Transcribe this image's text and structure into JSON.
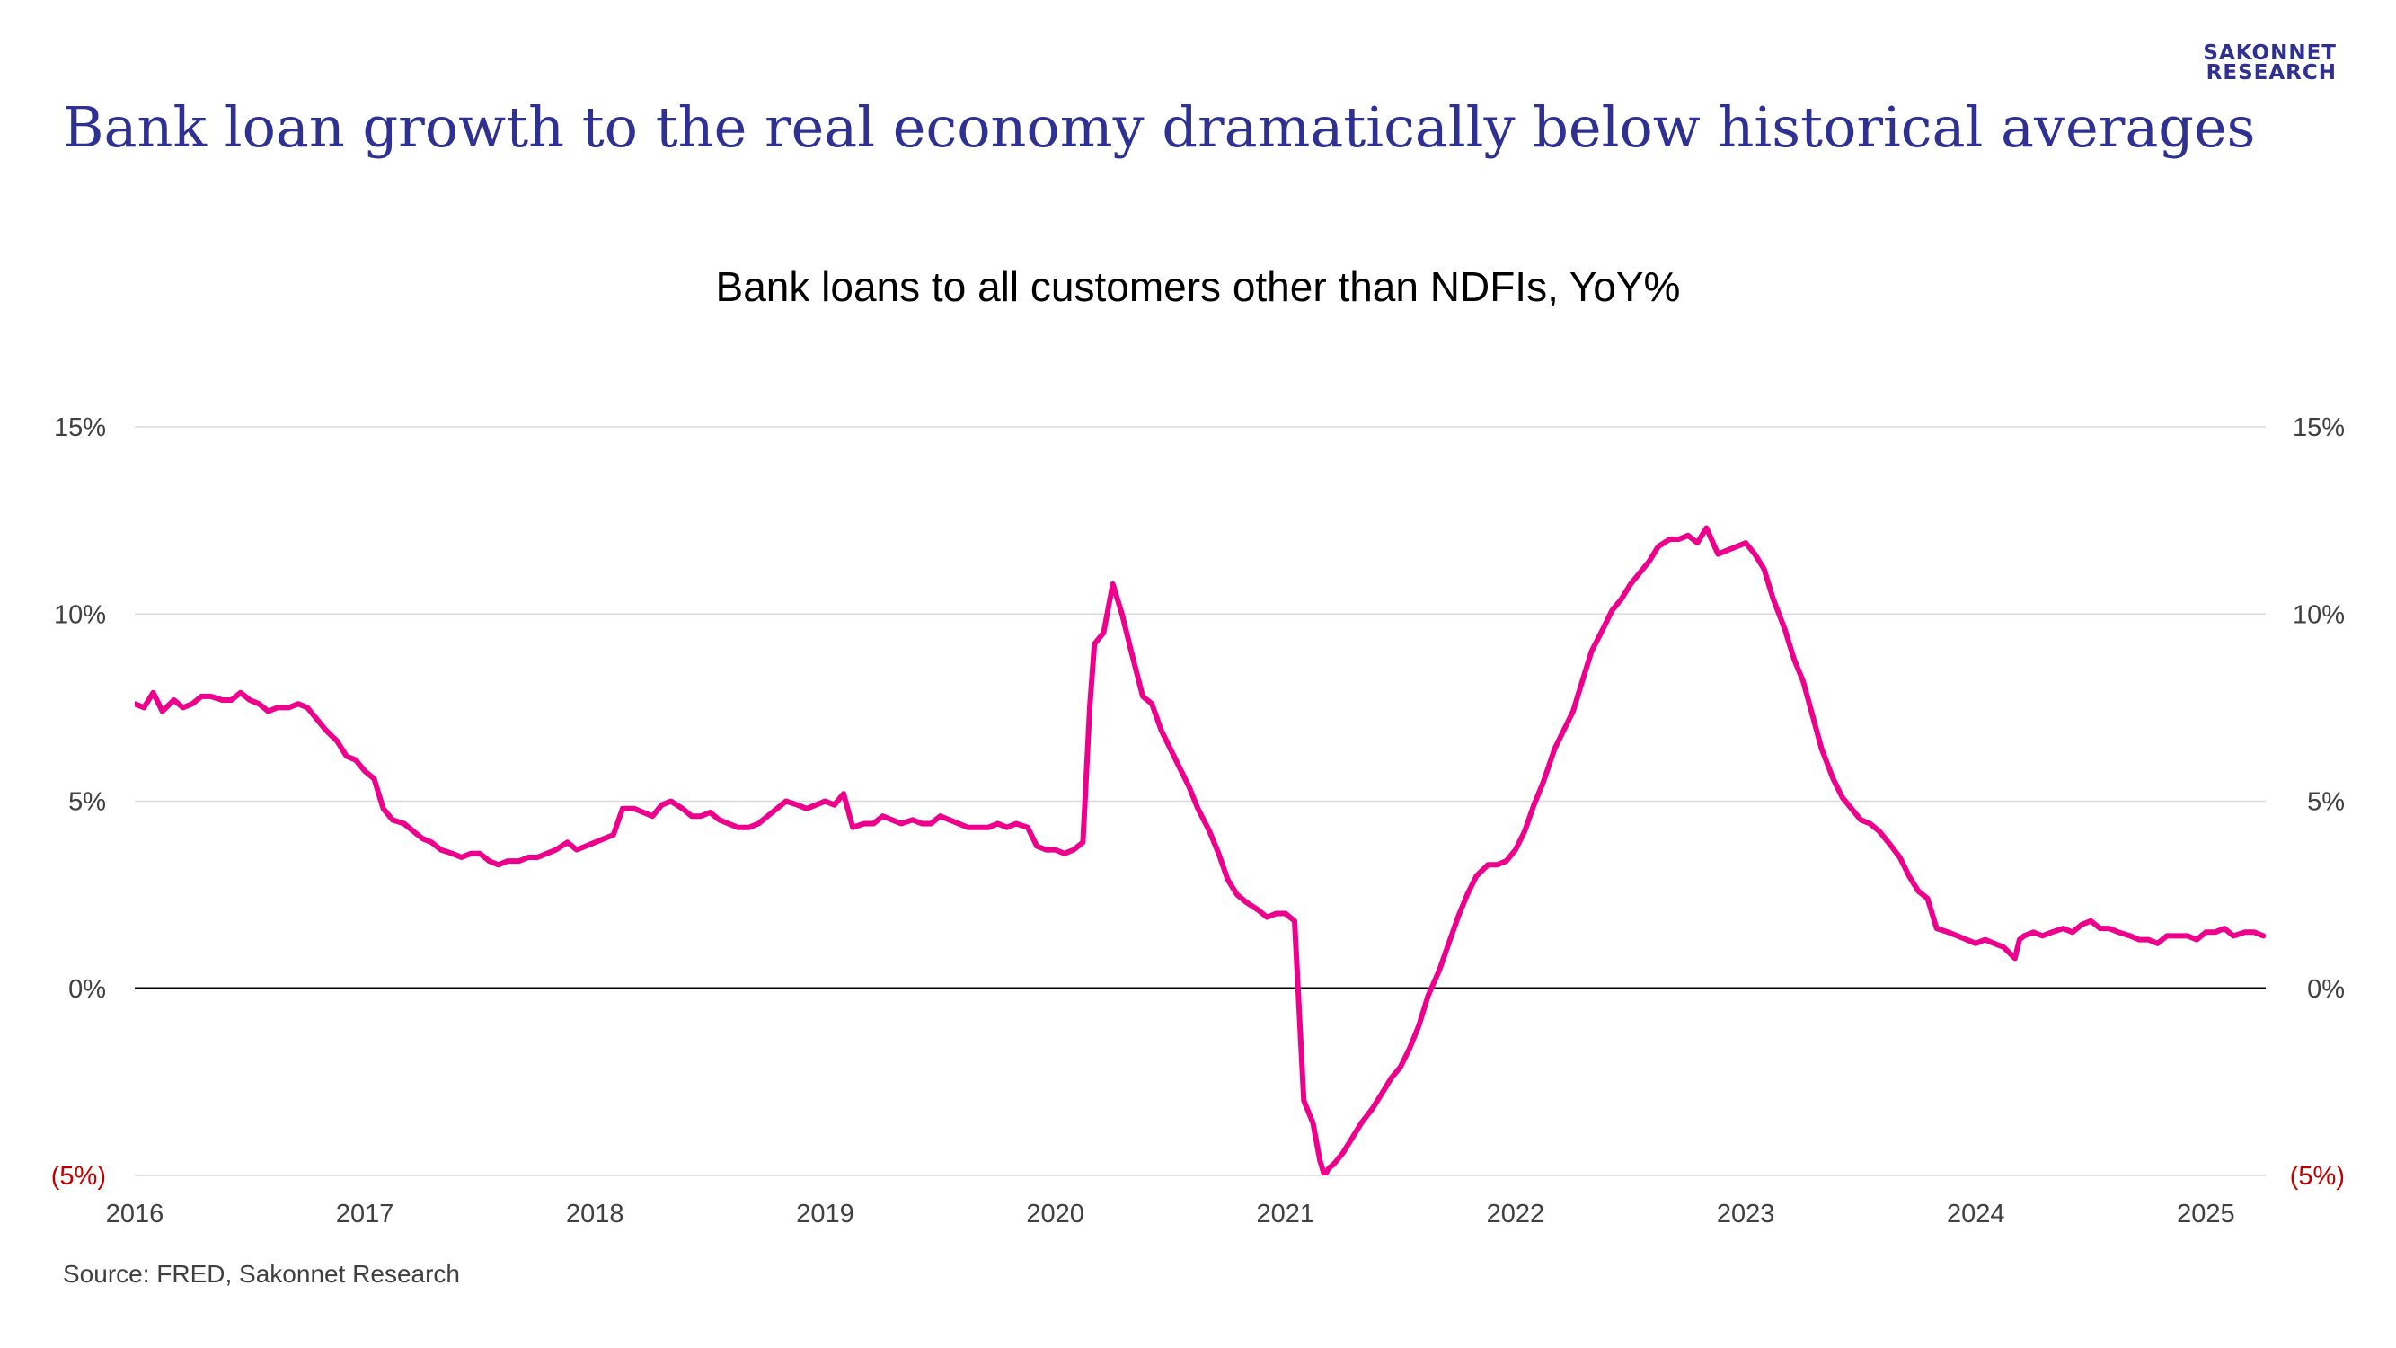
{
  "header": {
    "title": "Bank loan growth to the real economy dramatically below historical averages",
    "brand_line1": "SAKONNET",
    "brand_line2": "RESEARCH"
  },
  "footer": {
    "source": "Source: FRED, Sakonnet Research"
  },
  "colors": {
    "line": "#ec008c",
    "title": "#2e3192",
    "negative_tick": "#c00000",
    "grid": "#d9d9d9",
    "zero_line": "#000000"
  },
  "chart_data": {
    "type": "line",
    "title": "Bank loans to all customers other than NDFIs, YoY%",
    "xlabel": "",
    "ylabel": "",
    "ylim": [
      -5,
      15
    ],
    "xlim": [
      2016.0,
      2025.26
    ],
    "y_ticks": [
      15,
      10,
      5,
      0,
      -5
    ],
    "y_tick_labels": [
      "15%",
      "10%",
      "5%",
      "0%",
      "(5%)"
    ],
    "x_tick_labels": [
      "2016",
      "2017",
      "2018",
      "2019",
      "2020",
      "2021",
      "2022",
      "2023",
      "2024",
      "2025"
    ],
    "grid": true,
    "legend": "none",
    "axes": "left and right mirrored",
    "series": [
      {
        "x": [
          2016.0,
          2016.04,
          2016.08,
          2016.12,
          2016.17,
          2016.21,
          2016.25,
          2016.29,
          2016.33,
          2016.38,
          2016.42,
          2016.46,
          2016.5,
          2016.54,
          2016.58,
          2016.62,
          2016.67,
          2016.71,
          2016.75,
          2016.79,
          2016.83,
          2016.88,
          2016.92,
          2016.96,
          2017.0,
          2017.04,
          2017.08,
          2017.12,
          2017.17,
          2017.21,
          2017.25,
          2017.29,
          2017.33,
          2017.38,
          2017.42,
          2017.46,
          2017.5,
          2017.54,
          2017.58,
          2017.62,
          2017.67,
          2017.71,
          2017.75,
          2017.79,
          2017.83,
          2017.88,
          2017.92,
          2017.96,
          2018.0,
          2018.04,
          2018.08,
          2018.12,
          2018.17,
          2018.21,
          2018.25,
          2018.29,
          2018.33,
          2018.38,
          2018.42,
          2018.46,
          2018.5,
          2018.54,
          2018.58,
          2018.62,
          2018.67,
          2018.71,
          2018.75,
          2018.79,
          2018.83,
          2018.88,
          2018.92,
          2018.96,
          2019.0,
          2019.04,
          2019.08,
          2019.12,
          2019.17,
          2019.21,
          2019.25,
          2019.29,
          2019.33,
          2019.38,
          2019.42,
          2019.46,
          2019.5,
          2019.54,
          2019.58,
          2019.62,
          2019.67,
          2019.71,
          2019.75,
          2019.79,
          2019.83,
          2019.88,
          2019.92,
          2019.96,
          2020.0,
          2020.04,
          2020.08,
          2020.12,
          2020.15,
          2020.17,
          2020.21,
          2020.25,
          2020.29,
          2020.33,
          2020.38,
          2020.42,
          2020.46,
          2020.5,
          2020.54,
          2020.58,
          2020.62,
          2020.67,
          2020.71,
          2020.75,
          2020.79,
          2020.83,
          2020.88,
          2020.92,
          2020.96,
          2021.0,
          2021.04,
          2021.08,
          2021.12,
          2021.15,
          2021.17,
          2021.19,
          2021.21,
          2021.25,
          2021.29,
          2021.31,
          2021.33,
          2021.38,
          2021.42,
          2021.46,
          2021.5,
          2021.54,
          2021.58,
          2021.62,
          2021.67,
          2021.71,
          2021.75,
          2021.79,
          2021.83,
          2021.88,
          2021.92,
          2021.96,
          2022.0,
          2022.04,
          2022.08,
          2022.12,
          2022.17,
          2022.21,
          2022.25,
          2022.29,
          2022.33,
          2022.38,
          2022.42,
          2022.46,
          2022.5,
          2022.54,
          2022.58,
          2022.62,
          2022.67,
          2022.71,
          2022.75,
          2022.79,
          2022.83,
          2022.88,
          2022.92,
          2022.96,
          2023.0,
          2023.04,
          2023.08,
          2023.12,
          2023.17,
          2023.21,
          2023.25,
          2023.29,
          2023.33,
          2023.38,
          2023.42,
          2023.46,
          2023.5,
          2023.54,
          2023.58,
          2023.62,
          2023.67,
          2023.71,
          2023.75,
          2023.79,
          2023.83,
          2023.88,
          2023.92,
          2023.96,
          2024.0,
          2024.04,
          2024.08,
          2024.12,
          2024.17,
          2024.19,
          2024.21,
          2024.25,
          2024.29,
          2024.33,
          2024.38,
          2024.42,
          2024.46,
          2024.5,
          2024.54,
          2024.58,
          2024.62,
          2024.67,
          2024.71,
          2024.75,
          2024.79,
          2024.83,
          2024.88,
          2024.92,
          2024.96,
          2025.0,
          2025.04,
          2025.08,
          2025.12,
          2025.17,
          2025.21,
          2025.25
        ],
        "values": [
          7.6,
          7.5,
          7.9,
          7.4,
          7.7,
          7.5,
          7.6,
          7.8,
          7.8,
          7.7,
          7.7,
          7.9,
          7.7,
          7.6,
          7.4,
          7.5,
          7.5,
          7.6,
          7.5,
          7.2,
          6.9,
          6.6,
          6.2,
          6.1,
          5.8,
          5.6,
          4.8,
          4.5,
          4.4,
          4.2,
          4.0,
          3.9,
          3.7,
          3.6,
          3.5,
          3.6,
          3.6,
          3.4,
          3.3,
          3.4,
          3.4,
          3.5,
          3.5,
          3.6,
          3.7,
          3.9,
          3.7,
          3.8,
          3.9,
          4.0,
          4.1,
          4.8,
          4.8,
          4.7,
          4.6,
          4.9,
          5.0,
          4.8,
          4.6,
          4.6,
          4.7,
          4.5,
          4.4,
          4.3,
          4.3,
          4.4,
          4.6,
          4.8,
          5.0,
          4.9,
          4.8,
          4.9,
          5.0,
          4.9,
          5.2,
          4.3,
          4.4,
          4.4,
          4.6,
          4.5,
          4.4,
          4.5,
          4.4,
          4.4,
          4.6,
          4.5,
          4.4,
          4.3,
          4.3,
          4.3,
          4.4,
          4.3,
          4.4,
          4.3,
          3.8,
          3.7,
          3.7,
          3.6,
          3.7,
          3.9,
          7.5,
          9.2,
          9.5,
          10.8,
          10.0,
          9.0,
          7.8,
          7.6,
          6.9,
          6.4,
          5.9,
          5.4,
          4.8,
          4.2,
          3.6,
          2.9,
          2.5,
          2.3,
          2.1,
          1.9,
          2.0,
          2.0,
          1.8,
          -3.0,
          -3.6,
          -4.6,
          -5.0,
          -4.8,
          -4.7,
          -4.4,
          -4.0,
          -3.8,
          -3.6,
          -3.2,
          -2.8,
          -2.4,
          -2.1,
          -1.6,
          -1.0,
          -0.2,
          0.5,
          1.2,
          1.9,
          2.5,
          3.0,
          3.3,
          3.3,
          3.4,
          3.7,
          4.2,
          4.9,
          5.5,
          6.4,
          6.9,
          7.4,
          8.2,
          9.0,
          9.6,
          10.1,
          10.4,
          10.8,
          11.1,
          11.4,
          11.8,
          12.0,
          12.0,
          12.1,
          11.9,
          12.3,
          11.6,
          11.7,
          11.8,
          11.9,
          11.6,
          11.2,
          10.4,
          9.6,
          8.8,
          8.2,
          7.3,
          6.4,
          5.6,
          5.1,
          4.8,
          4.5,
          4.4,
          4.2,
          3.9,
          3.5,
          3.0,
          2.6,
          2.4,
          1.6,
          1.5,
          1.4,
          1.3,
          1.2,
          1.3,
          1.2,
          1.1,
          0.8,
          1.3,
          1.4,
          1.5,
          1.4,
          1.5,
          1.6,
          1.5,
          1.7,
          1.8,
          1.6,
          1.6,
          1.5,
          1.4,
          1.3,
          1.3,
          1.2,
          1.4,
          1.4,
          1.4,
          1.3,
          1.5,
          1.5,
          1.6,
          1.4,
          1.5,
          1.5,
          1.4
        ]
      }
    ]
  }
}
